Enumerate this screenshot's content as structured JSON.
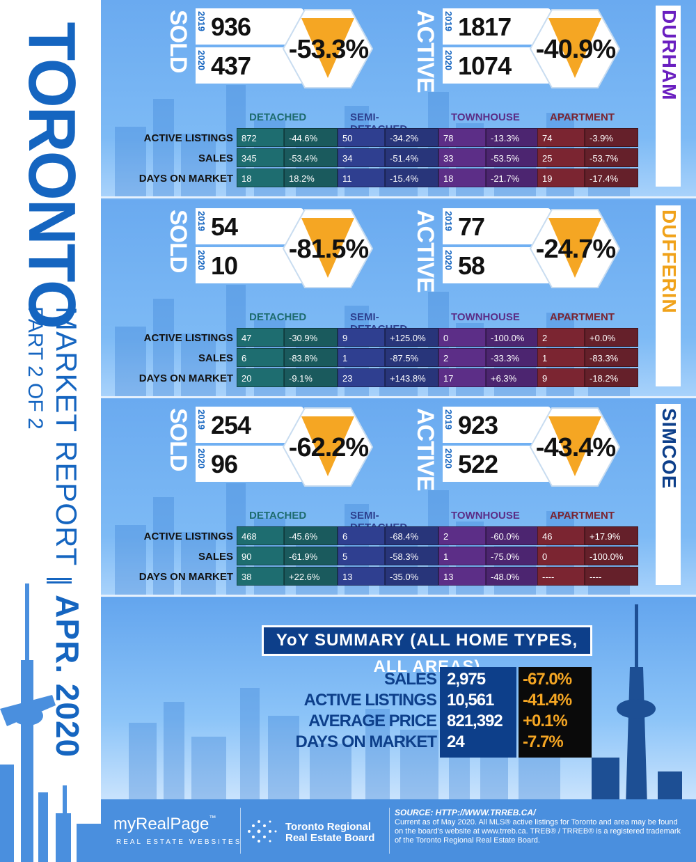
{
  "title": {
    "city": "TORONTO",
    "report": "MARKET REPORT",
    "date": "APR. 2020",
    "part": "PART 2 OF 2"
  },
  "years": {
    "prev": "2019",
    "curr": "2020"
  },
  "stat_labels": {
    "sold": "SOLD",
    "active": "ACTIVE"
  },
  "table_headers": [
    "DETACHED",
    "SEMI-DETACHED",
    "TOWNHOUSE",
    "APARTMENT"
  ],
  "row_labels": [
    "ACTIVE LISTINGS",
    "SALES",
    "DAYS ON MARKET"
  ],
  "colors": {
    "detached": "#1d6b6e",
    "semi": "#2d3f8e",
    "townhouse": "#5b2d86",
    "apartment": "#7a2430",
    "accent": "#f5a623",
    "navy": "#0d3f8a",
    "durham": "#6a1fc0",
    "dufferin": "#f0a21a",
    "simcoe": "#0d3f8a"
  },
  "regions": [
    {
      "name": "DURHAM",
      "sold_2019": "936",
      "sold_2020": "437",
      "sold_pct": "-53.3%",
      "active_2019": "1817",
      "active_2020": "1074",
      "active_pct": "-40.9%",
      "rows": [
        [
          [
            "872",
            "-44.6%"
          ],
          [
            "50",
            "-34.2%"
          ],
          [
            "78",
            "-13.3%"
          ],
          [
            "74",
            "-3.9%"
          ]
        ],
        [
          [
            "345",
            "-53.4%"
          ],
          [
            "34",
            "-51.4%"
          ],
          [
            "33",
            "-53.5%"
          ],
          [
            "25",
            "-53.7%"
          ]
        ],
        [
          [
            "18",
            "18.2%"
          ],
          [
            "11",
            "-15.4%"
          ],
          [
            "18",
            "-21.7%"
          ],
          [
            "19",
            "-17.4%"
          ]
        ]
      ]
    },
    {
      "name": "DUFFERIN",
      "sold_2019": "54",
      "sold_2020": "10",
      "sold_pct": "-81.5%",
      "active_2019": "77",
      "active_2020": "58",
      "active_pct": "-24.7%",
      "rows": [
        [
          [
            "47",
            "-30.9%"
          ],
          [
            "9",
            "+125.0%"
          ],
          [
            "0",
            "-100.0%"
          ],
          [
            "2",
            "+0.0%"
          ]
        ],
        [
          [
            "6",
            "-83.8%"
          ],
          [
            "1",
            "-87.5%"
          ],
          [
            "2",
            "-33.3%"
          ],
          [
            "1",
            "-83.3%"
          ]
        ],
        [
          [
            "20",
            "-9.1%"
          ],
          [
            "23",
            "+143.8%"
          ],
          [
            "17",
            "+6.3%"
          ],
          [
            "9",
            "-18.2%"
          ]
        ]
      ]
    },
    {
      "name": "SIMCOE",
      "sold_2019": "254",
      "sold_2020": "96",
      "sold_pct": "-62.2%",
      "active_2019": "923",
      "active_2020": "522",
      "active_pct": "-43.4%",
      "rows": [
        [
          [
            "468",
            "-45.6%"
          ],
          [
            "6",
            "-68.4%"
          ],
          [
            "2",
            "-60.0%"
          ],
          [
            "46",
            "+17.9%"
          ]
        ],
        [
          [
            "90",
            "-61.9%"
          ],
          [
            "5",
            "-58.3%"
          ],
          [
            "1",
            "-75.0%"
          ],
          [
            "0",
            "-100.0%"
          ]
        ],
        [
          [
            "38",
            "+22.6%"
          ],
          [
            "13",
            "-35.0%"
          ],
          [
            "13",
            "-48.0%"
          ],
          [
            "----",
            "----"
          ]
        ]
      ]
    }
  ],
  "summary": {
    "title": "YoY SUMMARY (ALL HOME TYPES, ALL AREAS)",
    "labels": [
      "SALES",
      "ACTIVE LISTINGS",
      "AVERAGE PRICE",
      "DAYS ON MARKET"
    ],
    "values": [
      "2,975",
      "10,561",
      "821,392",
      "24"
    ],
    "changes": [
      "-67.0%",
      "-41.4%",
      "+0.1%",
      "-7.7%"
    ]
  },
  "footer": {
    "mrp_logo": "myRealPage",
    "mrp_tm": "™",
    "mrp_sub": "REAL ESTATE WEBSITES",
    "treb_line1": "Toronto Regional",
    "treb_line2": "Real Estate Board",
    "source": "SOURCE: HTTP://WWW.TRREB.CA/",
    "disclaimer": "Current as of May 2020. All MLS® active listings for Toronto and area may be found on the board's website at www.trreb.ca. TREB® / TRREB® is a registered trademark of the Toronto Regional Real Estate Board."
  }
}
